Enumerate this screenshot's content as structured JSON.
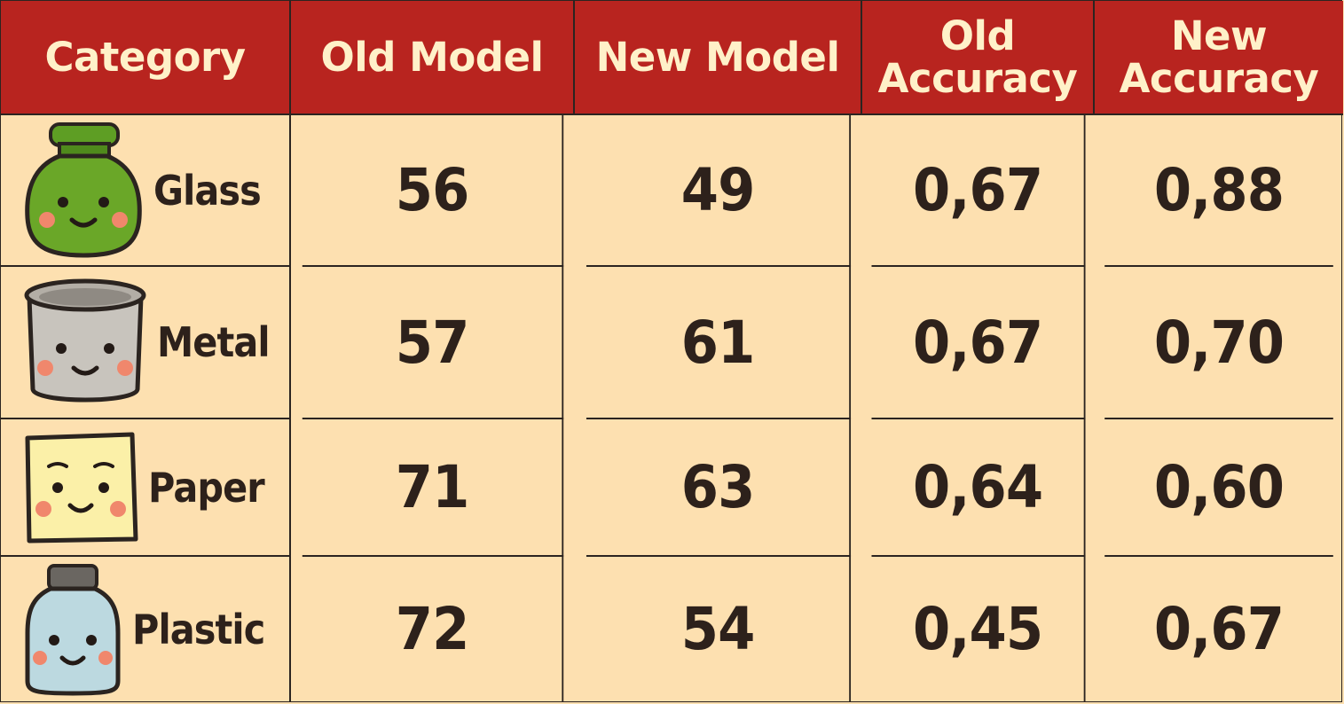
{
  "chart_data": {
    "type": "table",
    "columns": [
      "Category",
      "Old Model",
      "New Model",
      "Old\nAccuracy",
      "New\nAccuracy"
    ],
    "rows": [
      {
        "category": "Glass",
        "icon": "glass-bottle-icon",
        "old_model": "56",
        "new_model": "49",
        "old_accuracy": "0,67",
        "new_accuracy": "0,88"
      },
      {
        "category": "Metal",
        "icon": "metal-can-icon",
        "old_model": "57",
        "new_model": "61",
        "old_accuracy": "0,67",
        "new_accuracy": "0,70"
      },
      {
        "category": "Paper",
        "icon": "paper-sheet-icon",
        "old_model": "71",
        "new_model": "63",
        "old_accuracy": "0,64",
        "new_accuracy": "0,60"
      },
      {
        "category": "Plastic",
        "icon": "plastic-bottle-icon",
        "old_model": "72",
        "new_model": "54",
        "old_accuracy": "0,45",
        "new_accuracy": "0,67"
      }
    ],
    "colors": {
      "header_background": "#b8241f",
      "header_text": "#fff1c9",
      "cell_background": "#fde0b0",
      "cell_text": "#2d211b",
      "grid_lines": "#2b2420"
    }
  }
}
